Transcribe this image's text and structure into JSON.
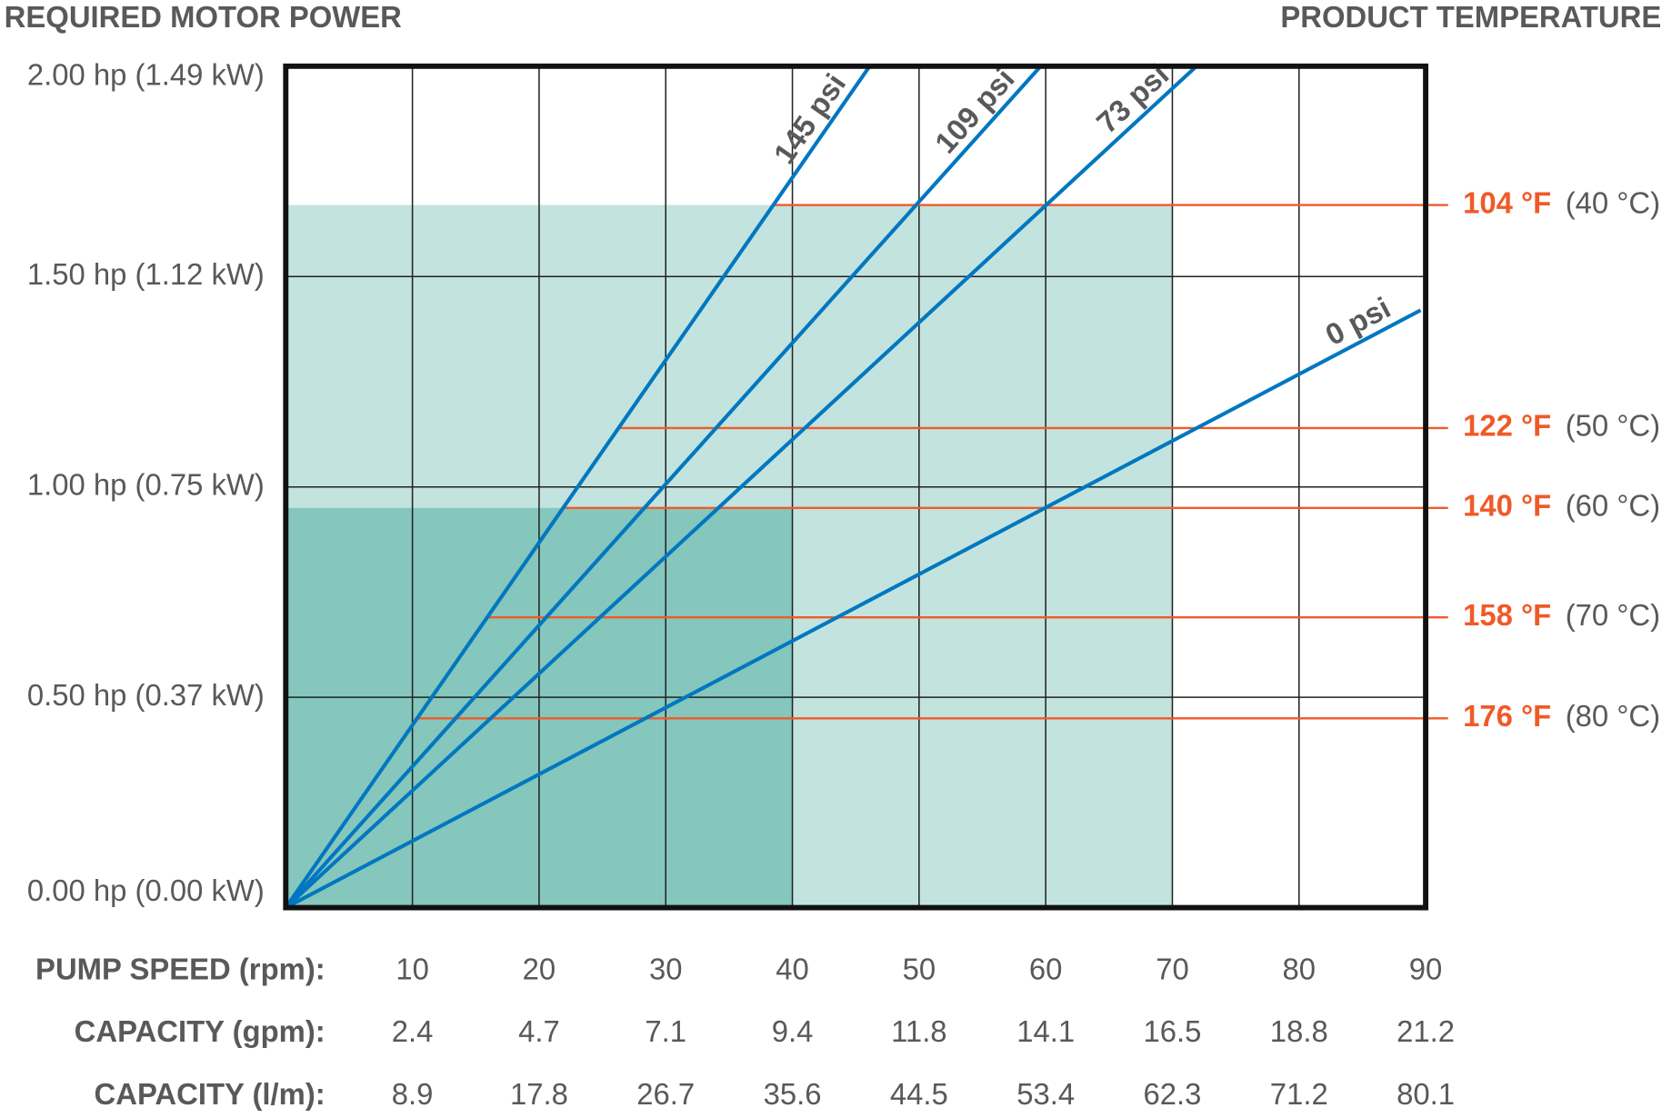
{
  "chart_data": {
    "type": "line",
    "title": "REQUIRED MOTOR POWER",
    "right_title": "PRODUCT TEMPERATURE",
    "xlabel": "PUMP SPEED (rpm):",
    "xlim": [
      0,
      90
    ],
    "xticks": [
      10,
      20,
      30,
      40,
      50,
      60,
      70,
      80,
      90
    ],
    "ylim": [
      0,
      2.0
    ],
    "yticks": [
      {
        "value": 0,
        "label": "0.00 hp (0.00 kW)"
      },
      {
        "value": 0.5,
        "label": "0.50 hp (0.37 kW)"
      },
      {
        "value": 1.0,
        "label": "1.00 hp (0.75 kW)"
      },
      {
        "value": 1.5,
        "label": "1.50 hp (1.12 kW)"
      },
      {
        "value": 2.0,
        "label": "2.00 hp (1.49 kW)"
      }
    ],
    "grid": true,
    "regions": [
      {
        "color": "#c3e3df",
        "xlim": [
          0,
          70
        ],
        "ylim": [
          0,
          1.67
        ]
      },
      {
        "color": "#85c6bd",
        "xlim": [
          0,
          40
        ],
        "ylim": [
          0,
          0.95
        ]
      }
    ],
    "series": [
      {
        "name": "145 psi",
        "color": "#0077c0",
        "x": [
          0,
          46.1
        ],
        "values": [
          0,
          2.0
        ]
      },
      {
        "name": "109 psi",
        "color": "#0077c0",
        "x": [
          0,
          59.6
        ],
        "values": [
          0,
          2.0
        ]
      },
      {
        "name": "73 psi",
        "color": "#0077c0",
        "x": [
          0,
          71.9
        ],
        "values": [
          0,
          2.0
        ]
      },
      {
        "name": "0 psi",
        "color": "#0077c0",
        "x": [
          0,
          89.6
        ],
        "values": [
          0,
          1.42
        ]
      }
    ],
    "temperature_lines": [
      {
        "name": "104 °F",
        "celsius": "(40 °C)",
        "color": "#f05a28",
        "x": [
          38.5,
          90
        ],
        "values": [
          1.67,
          1.67
        ]
      },
      {
        "name": "122 °F",
        "celsius": "(50 °C)",
        "color": "#f05a28",
        "x": [
          26.3,
          90
        ],
        "values": [
          1.14,
          1.14
        ]
      },
      {
        "name": "140 °F",
        "celsius": "(60 °C)",
        "color": "#f05a28",
        "x": [
          21.8,
          90
        ],
        "values": [
          0.95,
          0.95
        ]
      },
      {
        "name": "158 °F",
        "celsius": "(70 °C)",
        "color": "#f05a28",
        "x": [
          15.8,
          90
        ],
        "values": [
          0.69,
          0.69
        ]
      },
      {
        "name": "176 °F",
        "celsius": "(80 °C)",
        "color": "#f05a28",
        "x": [
          10.3,
          90
        ],
        "values": [
          0.45,
          0.45
        ]
      }
    ],
    "capacity_rows": [
      {
        "label": "CAPACITY (gpm):",
        "values": [
          2.4,
          4.7,
          7.1,
          9.4,
          11.8,
          14.1,
          16.5,
          18.8,
          21.2
        ]
      },
      {
        "label": "CAPACITY (l/m):",
        "values": [
          8.9,
          17.8,
          26.7,
          35.6,
          44.5,
          53.4,
          62.3,
          71.2,
          80.1
        ]
      }
    ]
  }
}
